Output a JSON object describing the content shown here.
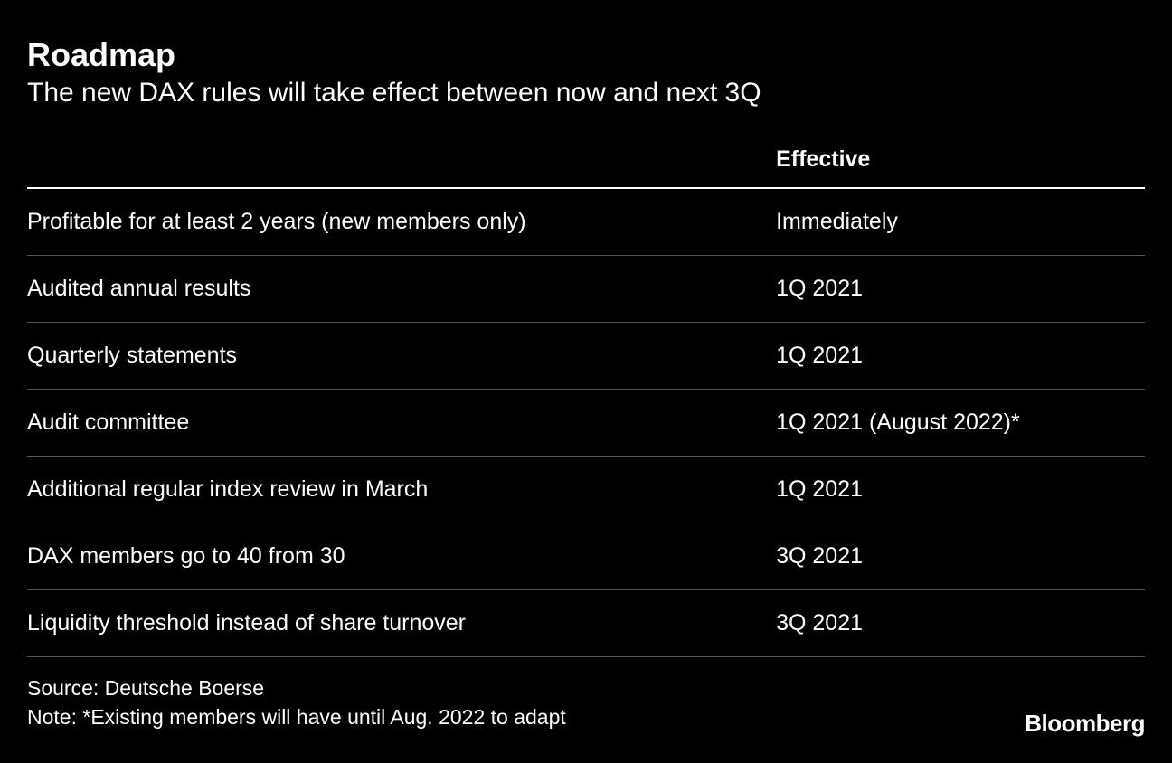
{
  "header": {
    "title": "Roadmap",
    "subtitle": "The new DAX rules will take effect between now and next 3Q"
  },
  "table": {
    "type": "table",
    "columns": [
      {
        "key": "rule",
        "label": "",
        "width_pct": 67,
        "align": "left"
      },
      {
        "key": "effective",
        "label": "Effective",
        "width_pct": 33,
        "align": "left"
      }
    ],
    "rows": [
      {
        "rule": "Profitable for at least 2 years (new members only)",
        "effective": "Immediately"
      },
      {
        "rule": "Audited annual results",
        "effective": "1Q 2021"
      },
      {
        "rule": "Quarterly statements",
        "effective": "1Q 2021"
      },
      {
        "rule": "Audit committee",
        "effective": "1Q 2021 (August 2022)*"
      },
      {
        "rule": "Additional regular index review in March",
        "effective": "1Q 2021"
      },
      {
        "rule": "DAX members go to 40 from 30",
        "effective": "3Q 2021"
      },
      {
        "rule": "Liquidity threshold instead of share turnover",
        "effective": "3Q 2021"
      }
    ],
    "header_border_color": "#ffffff",
    "row_border_color": "#555555",
    "text_color": "#ffffff",
    "font_size_pt": 19,
    "header_font_weight": 700,
    "body_font_weight": 400
  },
  "footer": {
    "source": "Source: Deutsche Boerse",
    "note": "Note: *Existing members will have until Aug. 2022 to adapt"
  },
  "brand": "Bloomberg",
  "style": {
    "background_color": "#000000",
    "text_color": "#ffffff",
    "title_fontsize_pt": 27,
    "title_fontweight": 700,
    "subtitle_fontsize_pt": 23,
    "subtitle_fontweight": 400,
    "footer_fontsize_pt": 17,
    "brand_fontsize_pt": 20,
    "brand_fontweight": 700
  }
}
